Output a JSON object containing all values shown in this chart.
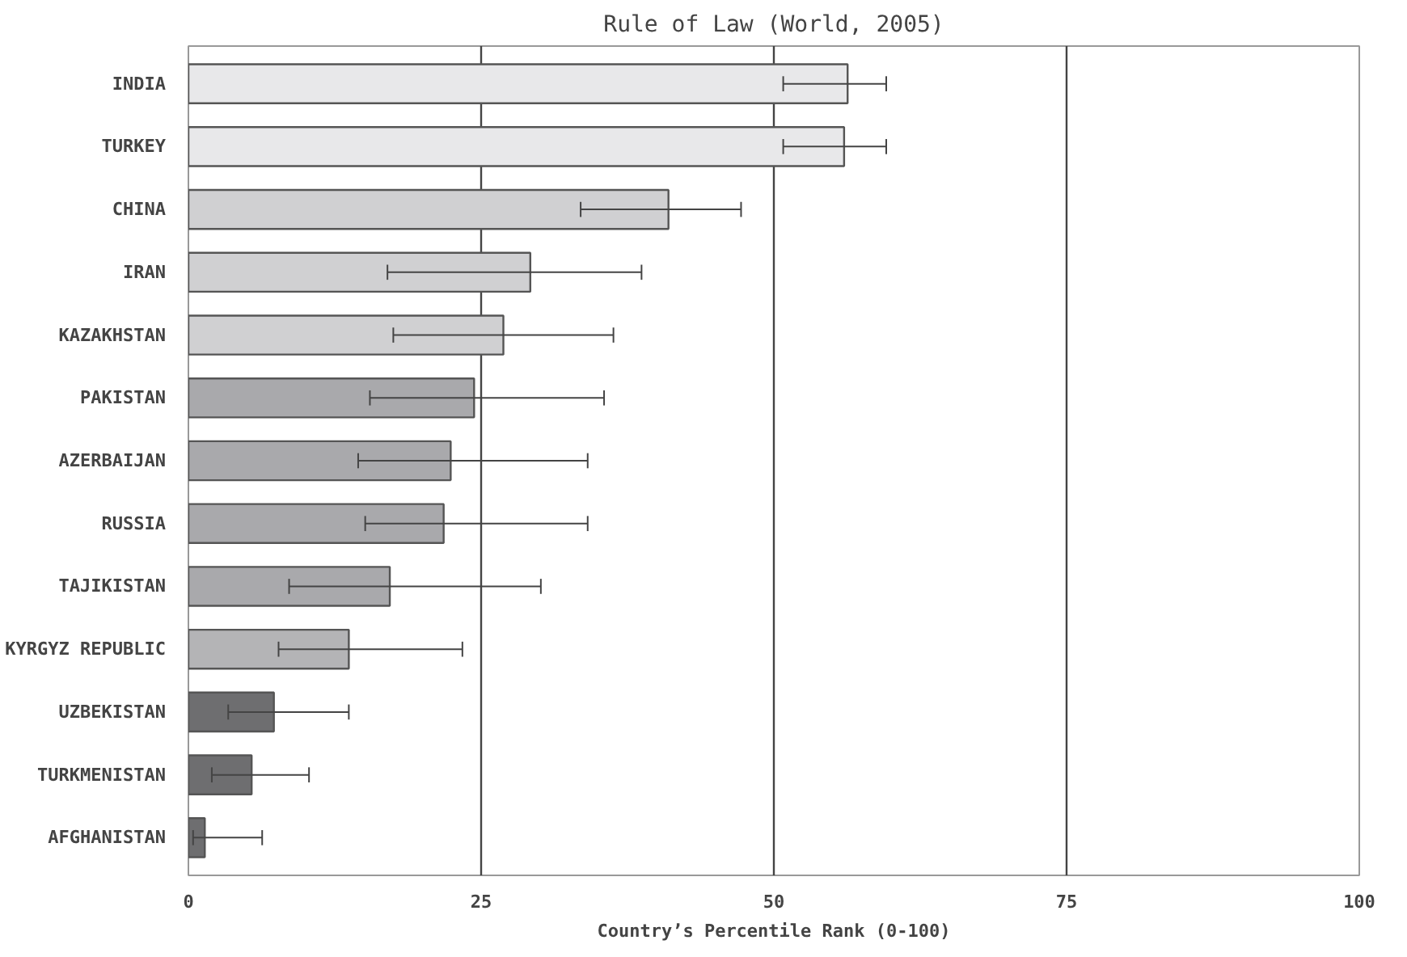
{
  "chart_data": {
    "type": "bar",
    "orientation": "horizontal",
    "title": "Rule of Law (World, 2005)",
    "xlabel": "Country’s Percentile Rank (0-100)",
    "categories": [
      "INDIA",
      "TURKEY",
      "CHINA",
      "IRAN",
      "KAZAKHSTAN",
      "PAKISTAN",
      "AZERBAIJAN",
      "RUSSIA",
      "TAJIKISTAN",
      "KYRGYZ REPUBLIC",
      "UZBEKISTAN",
      "TURKMENISTAN",
      "AFGHANISTAN"
    ],
    "values": [
      56.3,
      56.0,
      41.0,
      29.2,
      26.9,
      24.4,
      22.4,
      21.8,
      17.2,
      13.7,
      7.3,
      5.4,
      1.4
    ],
    "errors": [
      [
        50.8,
        59.6
      ],
      [
        50.8,
        59.6
      ],
      [
        33.5,
        47.2
      ],
      [
        17.0,
        38.7
      ],
      [
        17.5,
        36.3
      ],
      [
        15.5,
        35.5
      ],
      [
        14.5,
        34.1
      ],
      [
        15.1,
        34.1
      ],
      [
        8.6,
        30.1
      ],
      [
        7.7,
        23.4
      ],
      [
        3.4,
        13.7
      ],
      [
        2.0,
        10.3
      ],
      [
        0.4,
        6.3
      ]
    ],
    "colors": [
      "#e8e8ea",
      "#e8e8ea",
      "#d0d0d2",
      "#d0d0d2",
      "#d0d0d2",
      "#a9a9ac",
      "#a9a9ac",
      "#a9a9ac",
      "#a9a9ac",
      "#b4b4b6",
      "#6e6e70",
      "#6e6e70",
      "#6e6e70"
    ],
    "xlim": [
      0,
      100
    ],
    "xticks": [
      0,
      25,
      50,
      75,
      100
    ],
    "grid": "x"
  }
}
